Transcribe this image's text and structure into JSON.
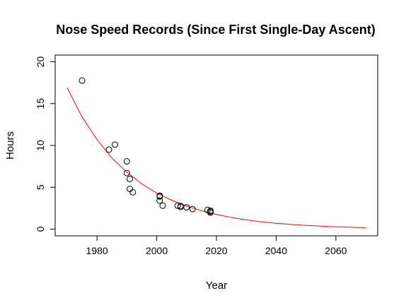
{
  "chart_data": {
    "type": "scatter",
    "title": "Nose Speed Records (Since First Single-Day Ascent)",
    "xlabel": "Year",
    "ylabel": "Hours",
    "xlim": [
      1966,
      2074
    ],
    "ylim": [
      -0.8,
      20.8
    ],
    "x_ticks": [
      1980,
      2000,
      2020,
      2040,
      2060
    ],
    "y_ticks": [
      0,
      5,
      10,
      15,
      20
    ],
    "grid": false,
    "legend": "none",
    "point_color": "#000000",
    "points": [
      {
        "x": 1975,
        "y": 17.75
      },
      {
        "x": 1984,
        "y": 9.5
      },
      {
        "x": 1986,
        "y": 10.1
      },
      {
        "x": 1990,
        "y": 8.1
      },
      {
        "x": 1990,
        "y": 6.7
      },
      {
        "x": 1991,
        "y": 6.0
      },
      {
        "x": 1991,
        "y": 4.8
      },
      {
        "x": 1992,
        "y": 4.4
      },
      {
        "x": 2001,
        "y": 4.0
      },
      {
        "x": 2001,
        "y": 3.9
      },
      {
        "x": 2001,
        "y": 3.4
      },
      {
        "x": 2002,
        "y": 2.8
      },
      {
        "x": 2007,
        "y": 2.8
      },
      {
        "x": 2008,
        "y": 2.75
      },
      {
        "x": 2008,
        "y": 2.65
      },
      {
        "x": 2010,
        "y": 2.6
      },
      {
        "x": 2012,
        "y": 2.4
      },
      {
        "x": 2017,
        "y": 2.3
      },
      {
        "x": 2018,
        "y": 2.2
      },
      {
        "x": 2018,
        "y": 2.1
      },
      {
        "x": 2018,
        "y": 1.97
      }
    ],
    "fit_curve": {
      "type": "line",
      "color": "#ff0000",
      "x": [
        1970,
        1975,
        1980,
        1985,
        1990,
        1995,
        2000,
        2005,
        2010,
        2015,
        2020,
        2025,
        2030,
        2035,
        2040,
        2045,
        2050,
        2055,
        2060,
        2065,
        2070
      ],
      "y": [
        16.9,
        13.4,
        10.7,
        8.5,
        6.8,
        5.4,
        4.3,
        3.45,
        2.75,
        2.2,
        1.75,
        1.4,
        1.1,
        0.88,
        0.7,
        0.56,
        0.45,
        0.36,
        0.28,
        0.22,
        0.17
      ]
    }
  }
}
